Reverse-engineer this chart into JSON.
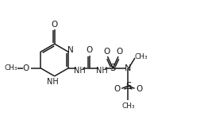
{
  "bg_color": "#ffffff",
  "line_color": "#1a1a1a",
  "line_width": 1.1,
  "font_size": 7.0,
  "figsize": [
    2.57,
    1.51
  ],
  "dpi": 100,
  "xlim": [
    0.0,
    10.0
  ],
  "ylim": [
    -2.5,
    4.5
  ]
}
